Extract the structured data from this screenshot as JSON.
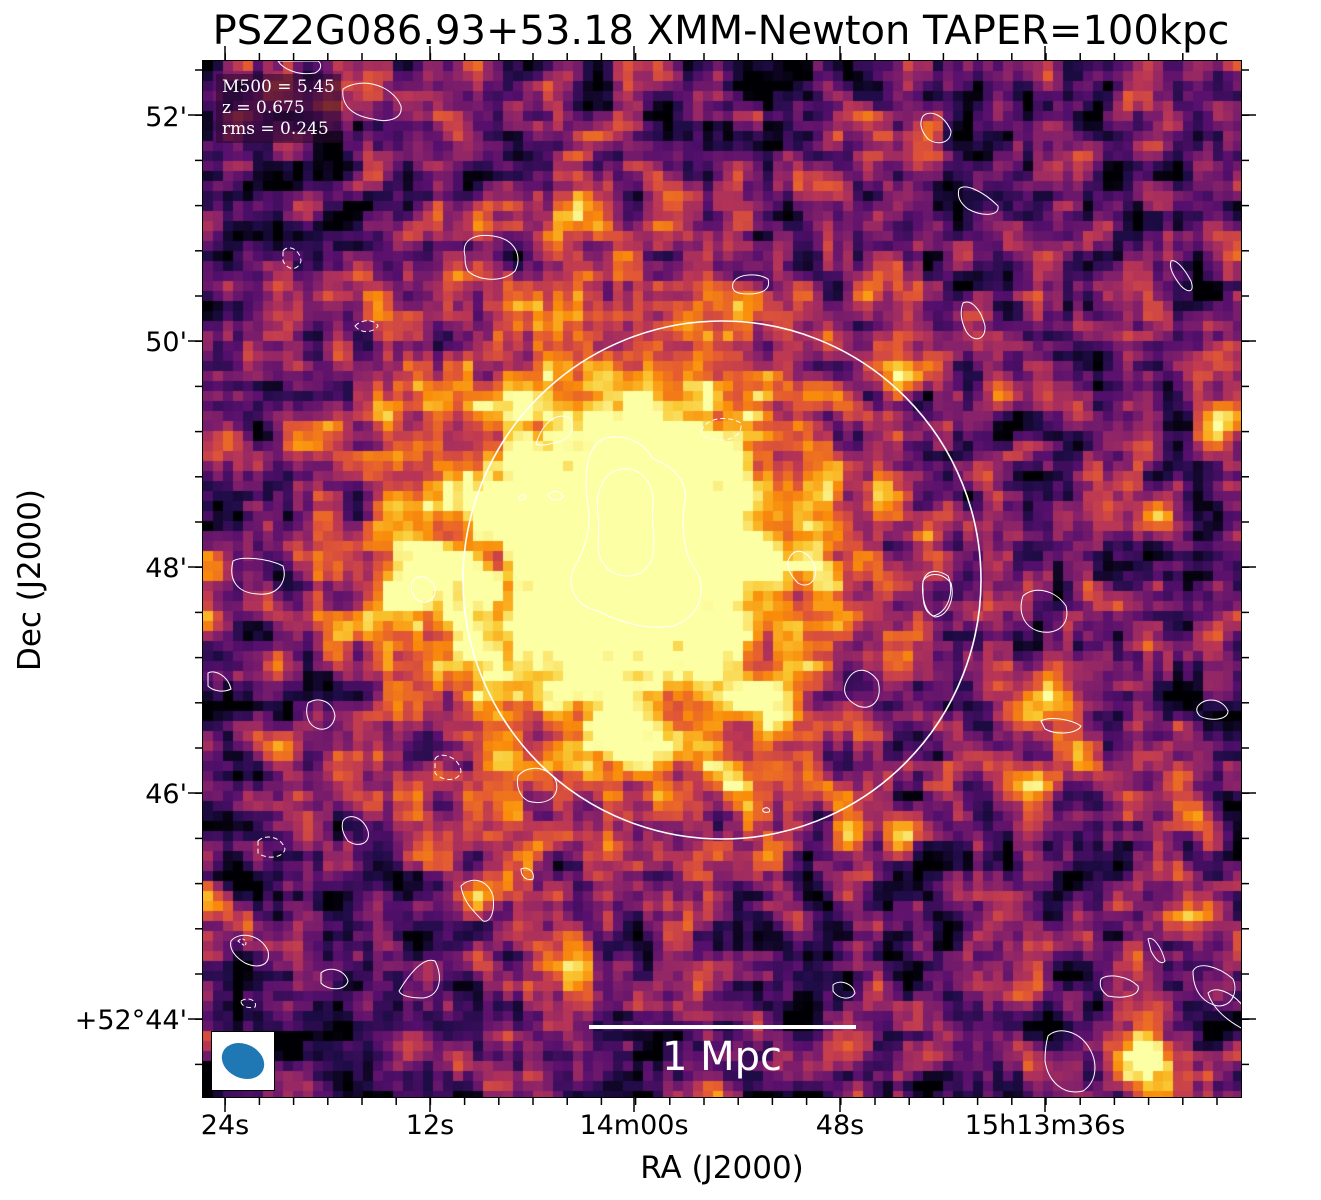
{
  "title": "PSZ2G086.93+53.18 XMM-Newton TAPER=100kpc",
  "info_box": {
    "m500": "M500 = 5.45",
    "z": "z = 0.675",
    "rms": "rms = 0.245"
  },
  "scale_bar": {
    "label": "1 Mpc"
  },
  "axes": {
    "xlabel": "RA (J2000)",
    "ylabel": "Dec (J2000)",
    "x_ticks": [
      "24s",
      "12s",
      "14m00s",
      "48s",
      "15h13m36s"
    ],
    "y_ticks": [
      "52'",
      "50'",
      "48'",
      "46'",
      "+52°44'"
    ]
  },
  "colormap": "inferno",
  "colors": {
    "contour": "#ffffff",
    "circle": "#ffffff",
    "beam": "#1f77b4"
  }
}
